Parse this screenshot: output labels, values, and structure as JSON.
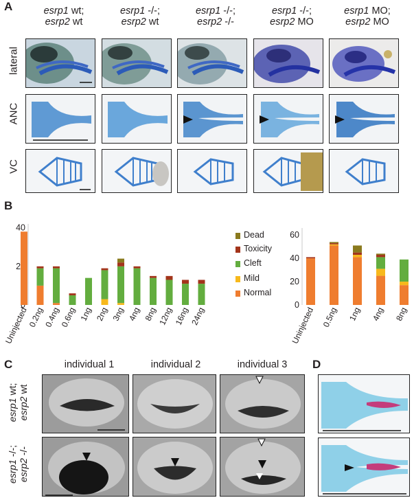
{
  "panels": {
    "A": "A",
    "B": "B",
    "C": "C",
    "D": "D"
  },
  "panelA": {
    "columns": [
      {
        "l1a": "esrp1",
        "l1b": " wt;",
        "l2a": "esrp2",
        "l2b": " wt"
      },
      {
        "l1a": "esrp1",
        "l1b": " -/-;",
        "l2a": "esrp2",
        "l2b": " wt"
      },
      {
        "l1a": "esrp1",
        "l1b": " -/-;",
        "l2a": "esrp2",
        "l2b": " -/-"
      },
      {
        "l1a": "esrp1",
        "l1b": " -/-;",
        "l2a": "esrp2",
        "l2b": " MO"
      },
      {
        "l1a": "esrp1",
        "l1b": " MO;",
        "l2a": "esrp2",
        "l2b": " MO"
      }
    ],
    "rows": [
      "lateral",
      "ANC",
      "VC"
    ]
  },
  "panelC": {
    "columns": [
      "individual 1",
      "individual 2",
      "individual 3"
    ],
    "rows": [
      {
        "l1a": "esrp1",
        "l1b": " wt;",
        "l2a": "esrp2",
        "l2b": " wt"
      },
      {
        "l1a": "esrp1",
        "l1b": " -/-;",
        "l2a": "esrp2",
        "l2b": " -/-"
      }
    ]
  },
  "legend": [
    {
      "label": "Dead",
      "color": "#8a7a1e"
    },
    {
      "label": "Toxicity",
      "color": "#a3341b"
    },
    {
      "label": "Cleft",
      "color": "#63ad3f"
    },
    {
      "label": "Mild",
      "color": "#f7b91c"
    },
    {
      "label": "Normal",
      "color": "#ef7d2f"
    }
  ],
  "chart_data": [
    {
      "type": "bar",
      "stacked": true,
      "categories": [
        "Uninjected",
        "0.2ng",
        "0.4ng",
        "0.6ng",
        "1ng",
        "2ng",
        "3ng",
        "4ng",
        "8ng",
        "12ng",
        "16ng",
        "24ng"
      ],
      "series": [
        {
          "name": "Normal",
          "values": [
            38,
            10,
            1,
            0,
            0,
            0,
            0,
            0,
            0,
            0,
            0,
            0
          ]
        },
        {
          "name": "Mild",
          "values": [
            0,
            0,
            0,
            0,
            0,
            3,
            1,
            0,
            0,
            0,
            0,
            0
          ]
        },
        {
          "name": "Cleft",
          "values": [
            0,
            9,
            18,
            5,
            14,
            15,
            19,
            19,
            14,
            13,
            11,
            11
          ]
        },
        {
          "name": "Toxicity",
          "values": [
            0,
            1,
            1,
            1,
            0,
            1,
            2,
            1,
            1,
            2,
            2,
            2
          ]
        },
        {
          "name": "Dead",
          "values": [
            0,
            0,
            0,
            0,
            0,
            0,
            2,
            0,
            0,
            0,
            0,
            0
          ]
        }
      ],
      "yticks": [
        0,
        20,
        40
      ],
      "ylim": [
        0,
        42
      ]
    },
    {
      "type": "bar",
      "stacked": true,
      "categories": [
        "Uninjected",
        "0.5ng",
        "1ng",
        "4ng",
        "8ng"
      ],
      "series": [
        {
          "name": "Normal",
          "values": [
            40,
            51,
            41,
            25,
            17
          ]
        },
        {
          "name": "Mild",
          "values": [
            0,
            1,
            2,
            6,
            3
          ]
        },
        {
          "name": "Cleft",
          "values": [
            0,
            0,
            0,
            10,
            19
          ]
        },
        {
          "name": "Toxicity",
          "values": [
            1,
            1,
            2,
            2,
            0
          ]
        },
        {
          "name": "Dead",
          "values": [
            0,
            1,
            6,
            1,
            0
          ]
        }
      ],
      "yticks": [
        0,
        20,
        40,
        60
      ],
      "ylim": [
        0,
        66
      ]
    }
  ]
}
